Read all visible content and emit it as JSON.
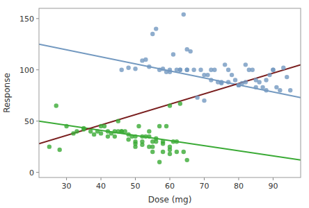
{
  "chart_data": {
    "type": "scatter",
    "xlabel": "Dose (mg)",
    "ylabel": "Response",
    "xlim": [
      22,
      98
    ],
    "ylim": [
      -5,
      160
    ],
    "xticks": [
      30,
      40,
      50,
      60,
      70,
      80,
      90
    ],
    "yticks": [
      0,
      50,
      100,
      150
    ],
    "grid": false,
    "series": [
      {
        "type": "scatter",
        "marker": "circle",
        "color": "#7399c0",
        "x": [
          46,
          48,
          50,
          52,
          53,
          54,
          55,
          56,
          57,
          58,
          59,
          60,
          61,
          62,
          63,
          64,
          65,
          66,
          67,
          68,
          69,
          70,
          71,
          72,
          73,
          74,
          75,
          76,
          77,
          78,
          79,
          80,
          81,
          82,
          83,
          84,
          85,
          86,
          87,
          88,
          89,
          90,
          91,
          92,
          93,
          94,
          95,
          60,
          63,
          65,
          70,
          72,
          75,
          77,
          80,
          82,
          85,
          88,
          90,
          65
        ],
        "values": [
          100,
          102,
          101,
          109,
          110,
          103,
          135,
          140,
          100,
          101,
          98,
          100,
          115,
          100,
          100,
          154,
          120,
          118,
          100,
          73,
          100,
          70,
          95,
          100,
          100,
          88,
          87,
          105,
          100,
          95,
          90,
          85,
          87,
          105,
          100,
          100,
          90,
          88,
          83,
          90,
          95,
          100,
          83,
          80,
          102,
          93,
          80,
          98,
          100,
          100,
          95,
          90,
          88,
          88,
          85,
          88,
          83,
          80,
          100,
          100
        ]
      },
      {
        "type": "scatter",
        "marker": "circle",
        "color": "#3aaa35",
        "x": [
          25,
          27,
          30,
          32,
          33,
          35,
          37,
          38,
          39,
          40,
          41,
          42,
          43,
          44,
          45,
          46,
          47,
          48,
          49,
          50,
          51,
          52,
          53,
          54,
          55,
          56,
          57,
          58,
          59,
          60,
          61,
          62,
          63,
          64,
          65,
          40,
          42,
          44,
          46,
          48,
          50,
          52,
          54,
          56,
          58,
          60,
          28,
          35,
          45,
          50,
          55,
          60,
          50,
          52,
          54,
          55,
          57,
          58,
          60,
          62
        ],
        "values": [
          25,
          65,
          45,
          38,
          40,
          43,
          40,
          37,
          40,
          45,
          45,
          40,
          38,
          40,
          50,
          40,
          40,
          37,
          35,
          30,
          45,
          35,
          35,
          40,
          30,
          33,
          45,
          30,
          45,
          65,
          30,
          20,
          67,
          20,
          12,
          38,
          35,
          35,
          40,
          32,
          35,
          30,
          35,
          30,
          28,
          25,
          22,
          42,
          40,
          25,
          25,
          18,
          28,
          27,
          25,
          20,
          10,
          20,
          22,
          30
        ]
      },
      {
        "type": "line",
        "line_style": "solid",
        "color": "#7399c0",
        "x": [
          22,
          98
        ],
        "values": [
          125,
          73
        ]
      },
      {
        "type": "line",
        "line_style": "solid",
        "color": "#3aaa35",
        "x": [
          22,
          98
        ],
        "values": [
          50,
          12
        ]
      },
      {
        "type": "line",
        "line_style": "solid",
        "color": "#7a1f1f",
        "x": [
          22,
          98
        ],
        "values": [
          28,
          105
        ]
      }
    ]
  }
}
